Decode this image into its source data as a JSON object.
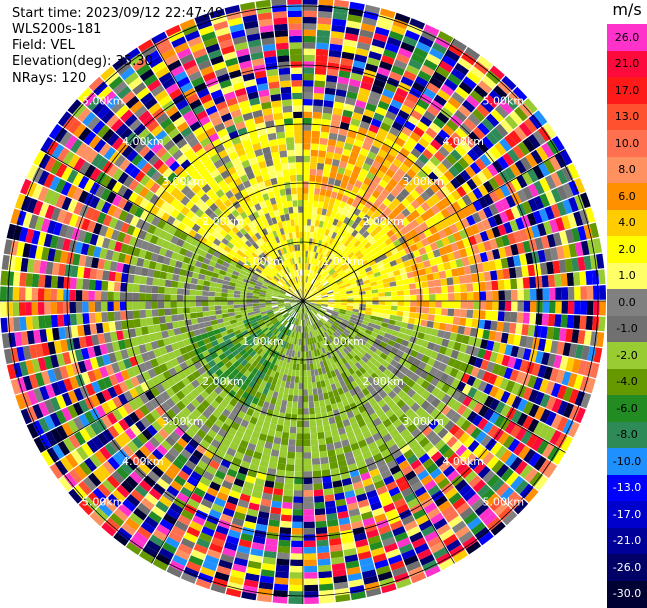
{
  "info": {
    "start_time": "Start time: 2023/09/12 22:47:49",
    "instrument": "WLS200s-181",
    "field": "Field: VEL",
    "elevation": "Elevation(deg): 35.30",
    "nrays": "NRays: 120"
  },
  "colorbar": {
    "unit": "m/s",
    "entries": [
      {
        "label": "26.0",
        "color": "#ff33cc"
      },
      {
        "label": "21.0",
        "color": "#ff0a3c"
      },
      {
        "label": "17.0",
        "color": "#ff1a1a"
      },
      {
        "label": "13.0",
        "color": "#ff5030"
      },
      {
        "label": "10.0",
        "color": "#ff7050"
      },
      {
        "label": "8.0",
        "color": "#ff9060"
      },
      {
        "label": "6.0",
        "color": "#ff9000"
      },
      {
        "label": "4.0",
        "color": "#ffcc00"
      },
      {
        "label": "2.0",
        "color": "#ffff00"
      },
      {
        "label": "1.0",
        "color": "#ffff66"
      },
      {
        "label": "0.0",
        "color": "#808080"
      },
      {
        "label": "-1.0",
        "color": "#707070"
      },
      {
        "label": "-2.0",
        "color": "#99cc33"
      },
      {
        "label": "-4.0",
        "color": "#669900"
      },
      {
        "label": "-6.0",
        "color": "#228b22"
      },
      {
        "label": "-8.0",
        "color": "#2e8b57"
      },
      {
        "label": "-10.0",
        "color": "#1e90ff"
      },
      {
        "label": "-13.0",
        "color": "#0000ff"
      },
      {
        "label": "-17.0",
        "color": "#0000cc"
      },
      {
        "label": "-21.0",
        "color": "#000099"
      },
      {
        "label": "-26.0",
        "color": "#000066"
      },
      {
        "label": "-30.0",
        "color": "#000033"
      }
    ]
  },
  "ring_labels": [
    "1.00km",
    "2.00km",
    "3.00km",
    "4.00km",
    "5.00km"
  ],
  "nrays": 120
}
